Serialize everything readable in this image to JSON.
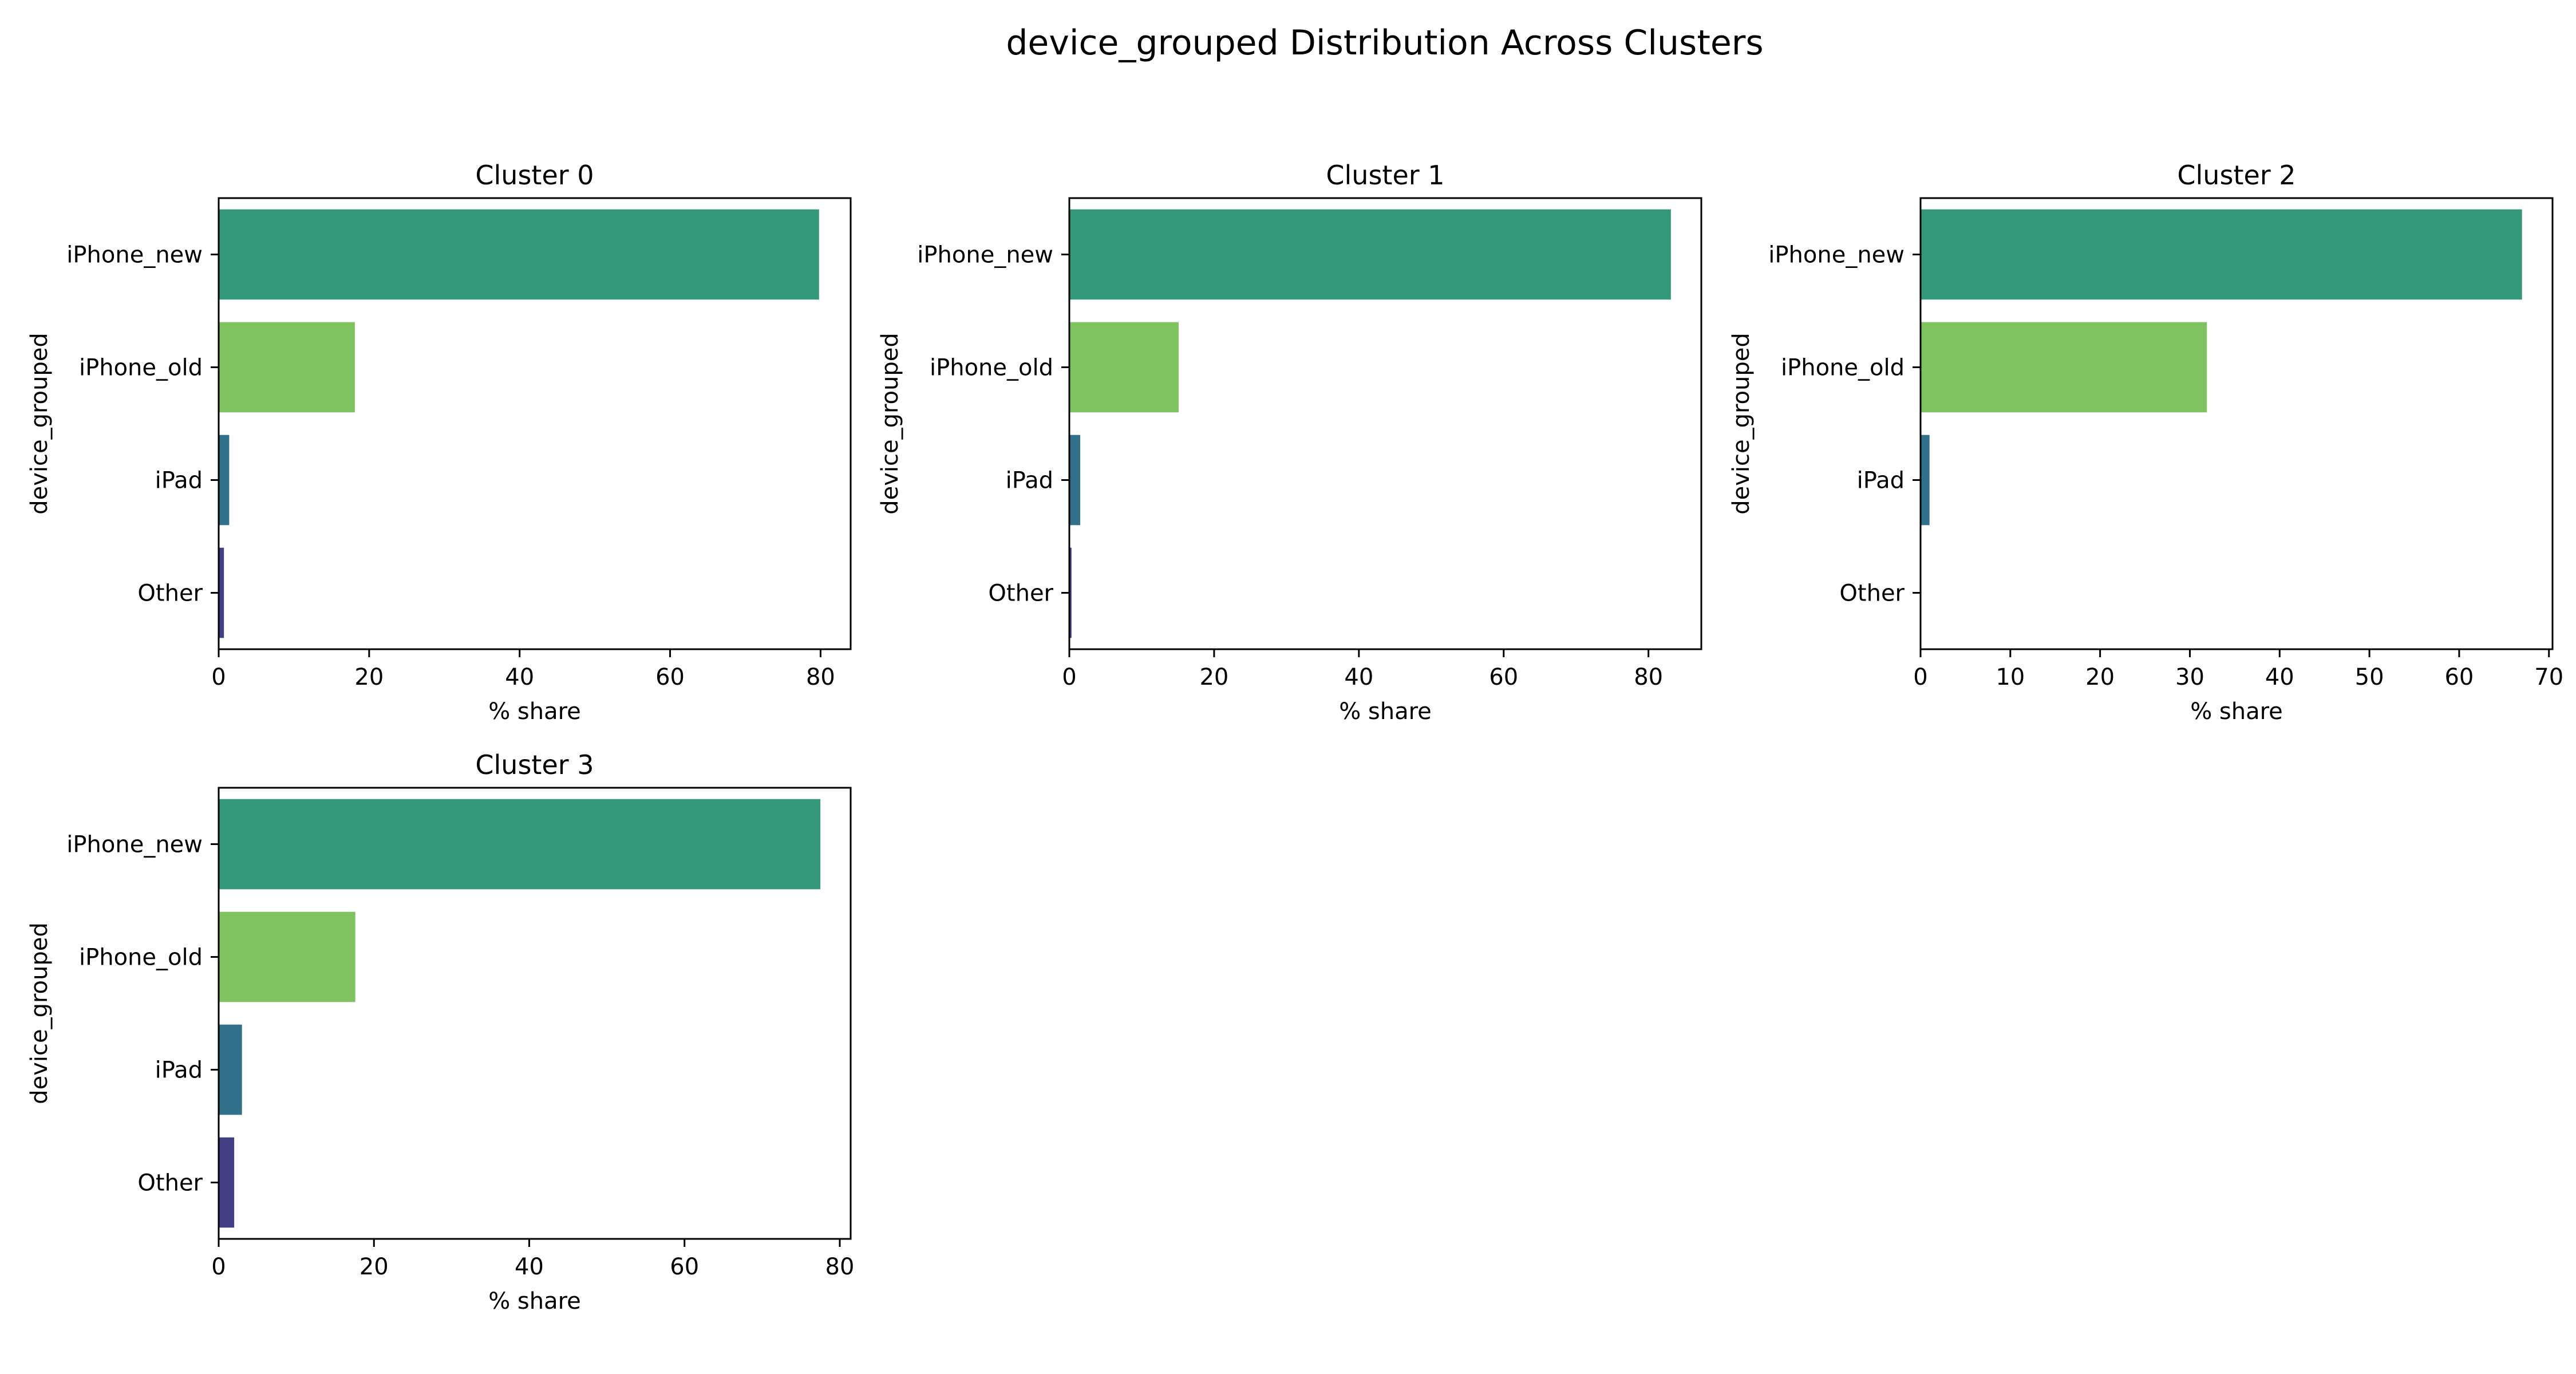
{
  "chart_data": {
    "type": "bar",
    "orientation": "horizontal",
    "title": "device_grouped Distribution Across Clusters",
    "categories": [
      "iPhone_new",
      "iPhone_old",
      "iPad",
      "Other"
    ],
    "colors": {
      "iPhone_new": "#35987b",
      "iPhone_old": "#7fc361",
      "iPad": "#31718a",
      "Other": "#423f85"
    },
    "panels": [
      {
        "title": "Cluster 0",
        "xlabel": "% share",
        "ylabel": "device_grouped",
        "values": [
          79.8,
          18.1,
          1.4,
          0.7
        ],
        "xlim": [
          0,
          84
        ],
        "xticks": [
          0,
          20,
          40,
          60,
          80
        ]
      },
      {
        "title": "Cluster 1",
        "xlabel": "% share",
        "ylabel": "device_grouped",
        "values": [
          83.1,
          15.1,
          1.5,
          0.3
        ],
        "xlim": [
          0,
          87.3
        ],
        "xticks": [
          0,
          20,
          40,
          60,
          80
        ]
      },
      {
        "title": "Cluster 2",
        "xlabel": "% share",
        "ylabel": "device_grouped",
        "values": [
          67.0,
          31.9,
          1.0,
          0.0
        ],
        "xlim": [
          0,
          70.4
        ],
        "xticks": [
          0,
          10,
          20,
          30,
          40,
          50,
          60,
          70
        ]
      },
      {
        "title": "Cluster 3",
        "xlabel": "% share",
        "ylabel": "device_grouped",
        "values": [
          77.5,
          17.6,
          3.0,
          2.0
        ],
        "xlim": [
          0,
          81.4
        ],
        "xticks": [
          0,
          20,
          40,
          60,
          80
        ]
      }
    ]
  }
}
